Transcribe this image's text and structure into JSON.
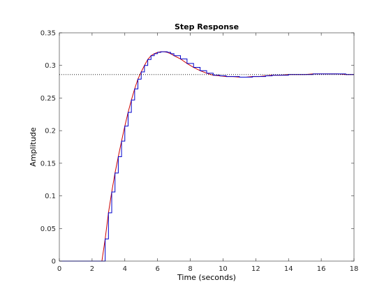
{
  "chart_data": {
    "type": "line",
    "title": "Step Response",
    "xlabel": "Time (seconds)",
    "ylabel": "Amplitude",
    "xlim": [
      0,
      18
    ],
    "ylim": [
      0,
      0.35
    ],
    "xticks": [
      0,
      2,
      4,
      6,
      8,
      10,
      12,
      14,
      16,
      18
    ],
    "yticks": [
      0,
      0.05,
      0.1,
      0.15,
      0.2,
      0.25,
      0.3,
      0.35
    ],
    "xtick_labels": [
      "0",
      "2",
      "4",
      "6",
      "8",
      "10",
      "12",
      "14",
      "16",
      "18"
    ],
    "ytick_labels": [
      "0",
      "0.05",
      "0.1",
      "0.15",
      "0.2",
      "0.25",
      "0.3",
      "0.35"
    ],
    "grid": false,
    "reference_line": {
      "y": 0.286,
      "style": "dotted",
      "color": "#000000"
    },
    "series": [
      {
        "color": "#cc0000",
        "style": "line",
        "x": [
          0,
          2.6,
          2.8,
          3.0,
          3.2,
          3.4,
          3.6,
          3.8,
          4.0,
          4.2,
          4.4,
          4.6,
          4.8,
          5.0,
          5.2,
          5.4,
          5.6,
          5.8,
          6.0,
          6.2,
          6.4,
          6.6,
          6.8,
          7.0,
          7.4,
          7.8,
          8.2,
          8.6,
          9.0,
          9.4,
          9.8,
          10.2,
          10.6,
          11.0,
          11.4,
          11.8,
          12.2,
          12.6,
          13.0,
          13.5,
          14.0,
          14.5,
          15.0,
          15.5,
          16.0,
          16.5,
          17.0,
          17.5,
          18.0
        ],
        "y": [
          0,
          0,
          0.034,
          0.074,
          0.106,
          0.135,
          0.16,
          0.184,
          0.207,
          0.228,
          0.247,
          0.264,
          0.279,
          0.29,
          0.3,
          0.309,
          0.315,
          0.318,
          0.32,
          0.321,
          0.321,
          0.32,
          0.318,
          0.315,
          0.31,
          0.303,
          0.297,
          0.292,
          0.288,
          0.285,
          0.284,
          0.283,
          0.283,
          0.282,
          0.282,
          0.283,
          0.283,
          0.284,
          0.285,
          0.285,
          0.286,
          0.286,
          0.286,
          0.287,
          0.287,
          0.287,
          0.287,
          0.286,
          0.286
        ]
      },
      {
        "color": "#0000cc",
        "style": "stairs",
        "x": [
          0,
          2.6,
          2.8,
          3.0,
          3.2,
          3.4,
          3.6,
          3.8,
          4.0,
          4.2,
          4.4,
          4.6,
          4.8,
          5.0,
          5.2,
          5.4,
          5.6,
          5.8,
          6.0,
          6.2,
          6.4,
          6.6,
          6.8,
          7.0,
          7.4,
          7.8,
          8.2,
          8.6,
          9.0,
          9.4,
          9.8,
          10.2,
          10.6,
          11.0,
          11.4,
          11.8,
          12.2,
          12.6,
          13.0,
          13.5,
          14.0,
          14.5,
          15.0,
          15.5,
          16.0,
          16.5,
          17.0,
          17.5,
          18.0
        ],
        "y": [
          0,
          0,
          0.034,
          0.074,
          0.106,
          0.135,
          0.16,
          0.184,
          0.207,
          0.228,
          0.247,
          0.264,
          0.279,
          0.29,
          0.3,
          0.309,
          0.315,
          0.318,
          0.32,
          0.321,
          0.321,
          0.32,
          0.318,
          0.315,
          0.31,
          0.303,
          0.297,
          0.292,
          0.288,
          0.285,
          0.284,
          0.283,
          0.283,
          0.282,
          0.282,
          0.283,
          0.283,
          0.284,
          0.285,
          0.285,
          0.286,
          0.286,
          0.286,
          0.287,
          0.287,
          0.287,
          0.287,
          0.286,
          0.286
        ]
      }
    ]
  }
}
